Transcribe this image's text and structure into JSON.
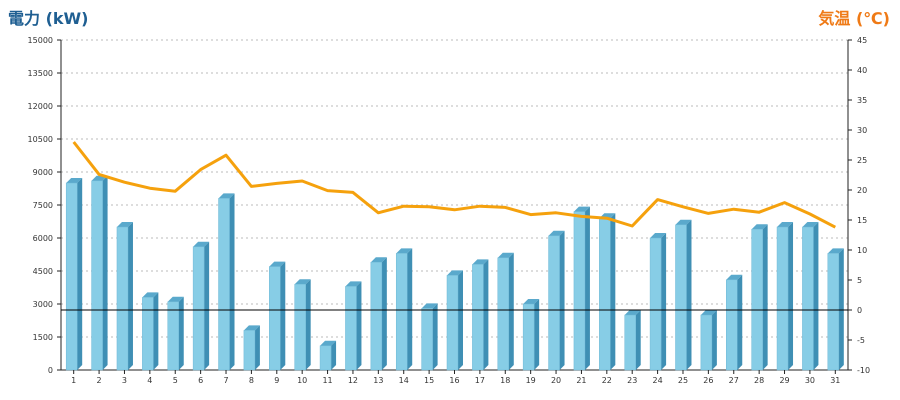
{
  "chart_data": {
    "type": "bar",
    "title_left": "電力 (kW)",
    "title_right": "気温 (℃)",
    "categories": [
      "1",
      "2",
      "3",
      "4",
      "5",
      "6",
      "7",
      "8",
      "9",
      "10",
      "11",
      "12",
      "13",
      "14",
      "15",
      "16",
      "17",
      "18",
      "19",
      "20",
      "21",
      "22",
      "23",
      "24",
      "25",
      "26",
      "27",
      "28",
      "29",
      "30",
      "31"
    ],
    "series": [
      {
        "axis": "left",
        "type": "bar",
        "values": [
          8500,
          8600,
          6500,
          3300,
          3100,
          5600,
          7800,
          1800,
          4700,
          3900,
          1100,
          3800,
          4900,
          5300,
          2800,
          4300,
          4800,
          5100,
          3000,
          6100,
          7200,
          6900,
          2500,
          6000,
          6600,
          2500,
          4100,
          6400,
          6500,
          6500,
          5300
        ]
      },
      {
        "axis": "right",
        "type": "line",
        "values": [
          28,
          22.6,
          21.3,
          20.3,
          19.8,
          23.4,
          25.8,
          20.6,
          21.1,
          21.5,
          19.9,
          19.6,
          16.2,
          17.3,
          17.2,
          16.7,
          17.3,
          17.1,
          15.9,
          16.2,
          15.6,
          15.3,
          14,
          18.4,
          17.2,
          16.1,
          16.8,
          16.3,
          17.9,
          16,
          13.8
        ]
      }
    ],
    "left_axis": {
      "min": 0,
      "max": 15000,
      "ticks": [
        "0",
        "1500",
        "3000",
        "4500",
        "6000",
        "7500",
        "9000",
        "10500",
        "12000",
        "13500",
        "15000"
      ]
    },
    "right_axis": {
      "min": -10,
      "max": 45,
      "ticks": [
        "-10",
        "-5",
        "0",
        "5",
        "10",
        "15",
        "20",
        "25",
        "30",
        "35",
        "40",
        "45"
      ]
    },
    "reference_line": {
      "axis": "right",
      "value": 0
    },
    "grid": true,
    "colors": {
      "bar_front": "#87cde6",
      "bar_side": "#3f8fb4",
      "bar_top": "#5aa9cc",
      "line": "#f5a10d",
      "grid": "#bbbbbb",
      "axis": "#222222"
    }
  }
}
